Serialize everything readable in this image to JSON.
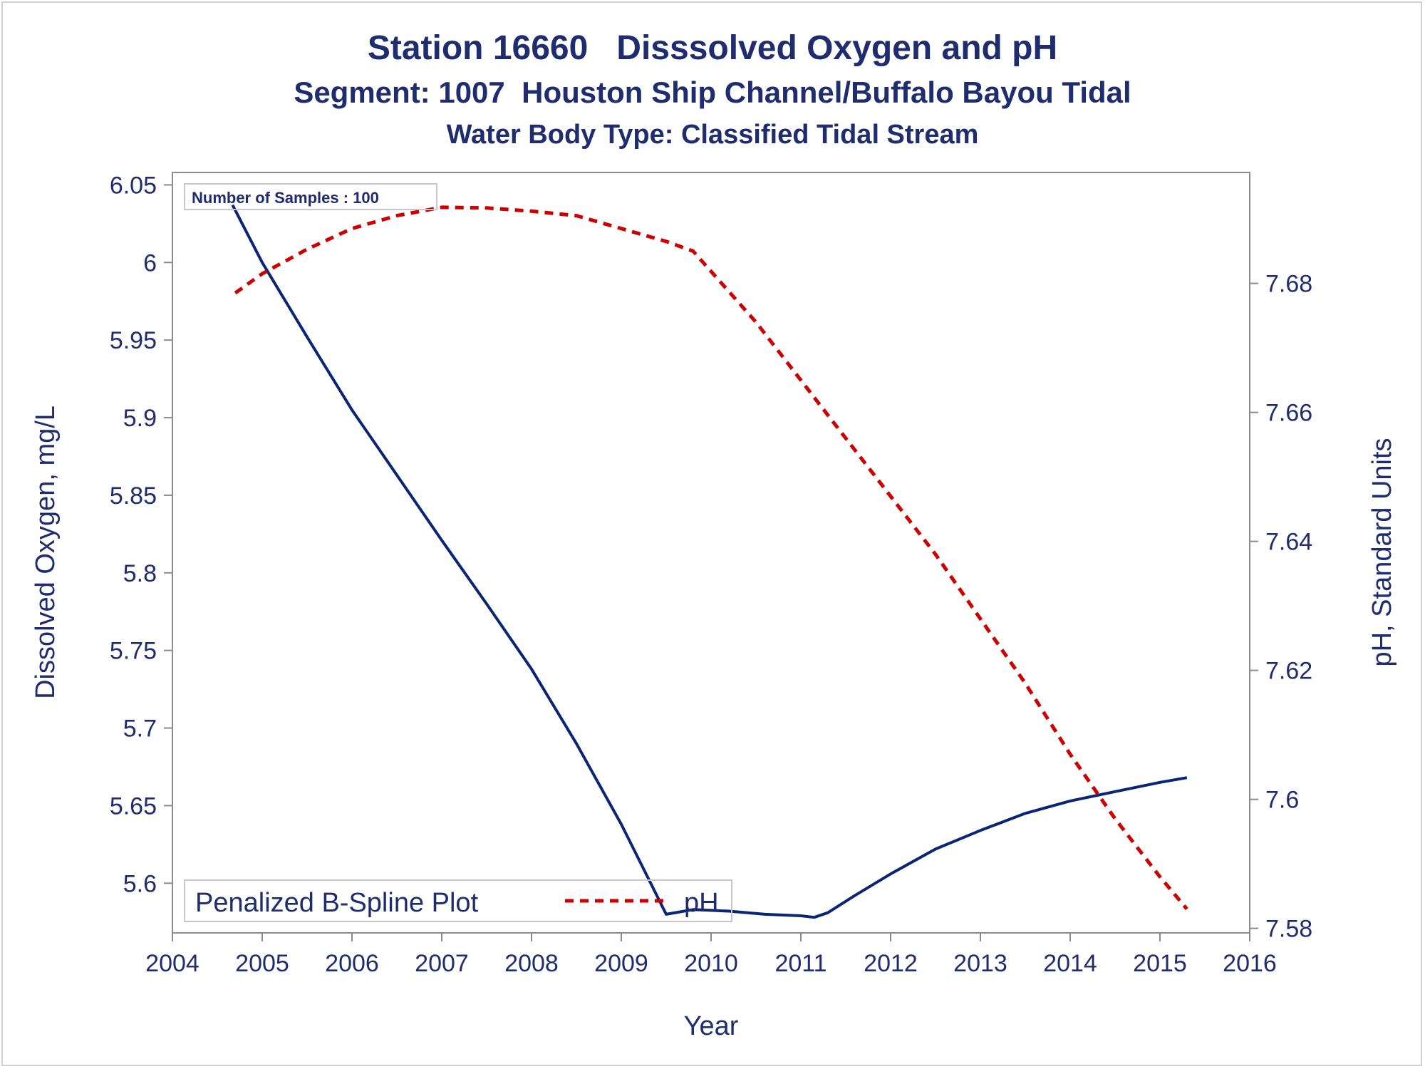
{
  "titles": {
    "line1": "Station 16660   Disssolved Oxygen and pH",
    "line2": "Segment: 1007  Houston Ship Channel/Buffalo Bayou Tidal",
    "line3": "Water Body Type: Classified Tidal Stream"
  },
  "inset_label": "Number of Samples : 100",
  "legend": {
    "title": "Penalized B-Spline Plot",
    "entry": "pH"
  },
  "colors": {
    "do_line": "#0b2575",
    "ph_line": "#cc0000",
    "text": "#1f2d6e",
    "axis": "#8c8c8c"
  },
  "chart_data": {
    "type": "line",
    "xlabel": "Year",
    "ylabel_left": "Dissolved Oxygen, mg/L",
    "ylabel_right": "pH, Standard Units",
    "xlim": [
      2004,
      2016
    ],
    "ylim_left": [
      5.568,
      6.058
    ],
    "ylim_right": [
      7.5793,
      7.6972
    ],
    "x_ticks": [
      "2004",
      "2005",
      "2006",
      "2007",
      "2008",
      "2009",
      "2010",
      "2011",
      "2012",
      "2013",
      "2014",
      "2015",
      "2016"
    ],
    "y_ticks_left": [
      "5.6",
      "5.65",
      "5.7",
      "5.75",
      "5.8",
      "5.85",
      "5.9",
      "5.95",
      "6",
      "6.05"
    ],
    "y_ticks_right": [
      "7.58",
      "7.6",
      "7.62",
      "7.64",
      "7.66",
      "7.68"
    ],
    "grid": false,
    "legend_position": "bottom-left",
    "series": [
      {
        "name": "Dissolved Oxygen",
        "axis": "left",
        "style": "solid",
        "x": [
          2004.67,
          2005.0,
          2005.5,
          2006.0,
          2006.5,
          2007.0,
          2007.5,
          2008.0,
          2008.5,
          2009.0,
          2009.5,
          2009.8,
          2010.2,
          2010.6,
          2011.0,
          2011.15,
          2011.3,
          2011.6,
          2012.0,
          2012.5,
          2013.0,
          2013.5,
          2014.0,
          2014.5,
          2015.0,
          2015.3
        ],
        "y": [
          6.037,
          6.0,
          5.952,
          5.905,
          5.863,
          5.821,
          5.78,
          5.738,
          5.69,
          5.638,
          5.58,
          5.583,
          5.582,
          5.58,
          5.579,
          5.578,
          5.581,
          5.592,
          5.606,
          5.622,
          5.634,
          5.645,
          5.653,
          5.659,
          5.665,
          5.668
        ]
      },
      {
        "name": "pH",
        "axis": "right",
        "style": "dashed",
        "x": [
          2004.7,
          2005.0,
          2005.5,
          2006.0,
          2006.5,
          2007.0,
          2007.5,
          2008.0,
          2008.5,
          2009.0,
          2009.5,
          2009.8,
          2010.5,
          2011.0,
          2011.5,
          2012.0,
          2012.5,
          2013.0,
          2013.5,
          2014.0,
          2014.5,
          2015.0,
          2015.3
        ],
        "y": [
          7.6785,
          7.6815,
          7.6853,
          7.6885,
          7.6905,
          7.6918,
          7.6917,
          7.6912,
          7.6905,
          7.6885,
          7.6865,
          7.685,
          7.674,
          7.665,
          7.656,
          7.647,
          7.638,
          7.628,
          7.618,
          7.607,
          7.597,
          7.588,
          7.583
        ]
      }
    ]
  }
}
